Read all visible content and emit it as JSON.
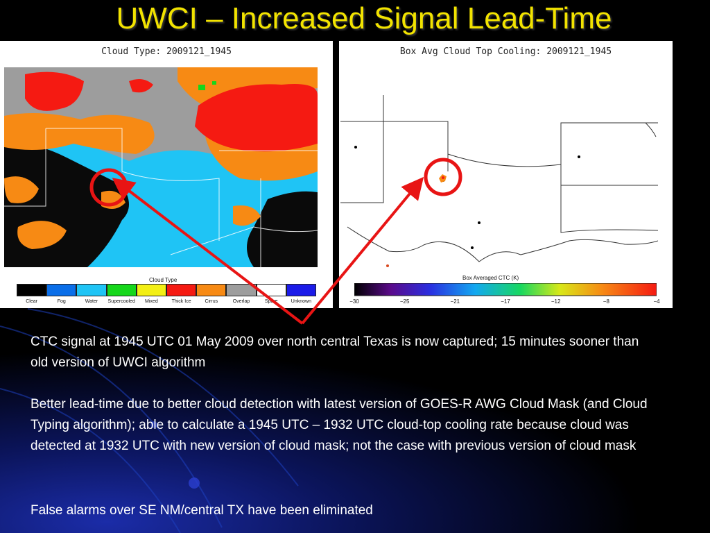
{
  "slide": {
    "title": "UWCI – Increased Signal Lead-Time"
  },
  "left_panel": {
    "title": "Cloud Type: 2009121_1945",
    "legend_title": "Cloud Type",
    "legend": [
      {
        "label": "Clear",
        "color": "#000000"
      },
      {
        "label": "Fog",
        "color": "#0a6ee8"
      },
      {
        "label": "Water",
        "color": "#1fc4f5"
      },
      {
        "label": "Supercooled",
        "color": "#16d71b"
      },
      {
        "label": "Mixed",
        "color": "#f3ef14"
      },
      {
        "label": "Thick Ice",
        "color": "#f51a12"
      },
      {
        "label": "Cirrus",
        "color": "#f78a14"
      },
      {
        "label": "Overlap",
        "color": "#9d9d9d"
      },
      {
        "label": "Spare",
        "color": "#ffffff"
      },
      {
        "label": "Unknown",
        "color": "#1b1be8"
      }
    ]
  },
  "right_panel": {
    "title": "Box Avg Cloud Top Cooling: 2009121_1945",
    "legend_title": "Box Averaged CTC (K)",
    "ticks": [
      "−30",
      "−25",
      "−21",
      "−17",
      "−12",
      "−8",
      "−4"
    ]
  },
  "body": {
    "p1": "CTC signal at 1945 UTC 01 May 2009 over north central Texas is now captured; 15 minutes sooner than old version of UWCI algorithm",
    "p2": "Better lead-time due to better cloud detection with latest version of GOES-R AWG Cloud Mask (and Cloud Typing algorithm); able to calculate a 1945 UTC – 1932 UTC cloud-top cooling rate because cloud was detected at 1932 UTC with new version of cloud mask; not the case with previous version of cloud mask",
    "p3": "False alarms over SE NM/central TX have been eliminated"
  },
  "colors": {
    "title": "#f2e300",
    "highlight": "#e81414"
  }
}
